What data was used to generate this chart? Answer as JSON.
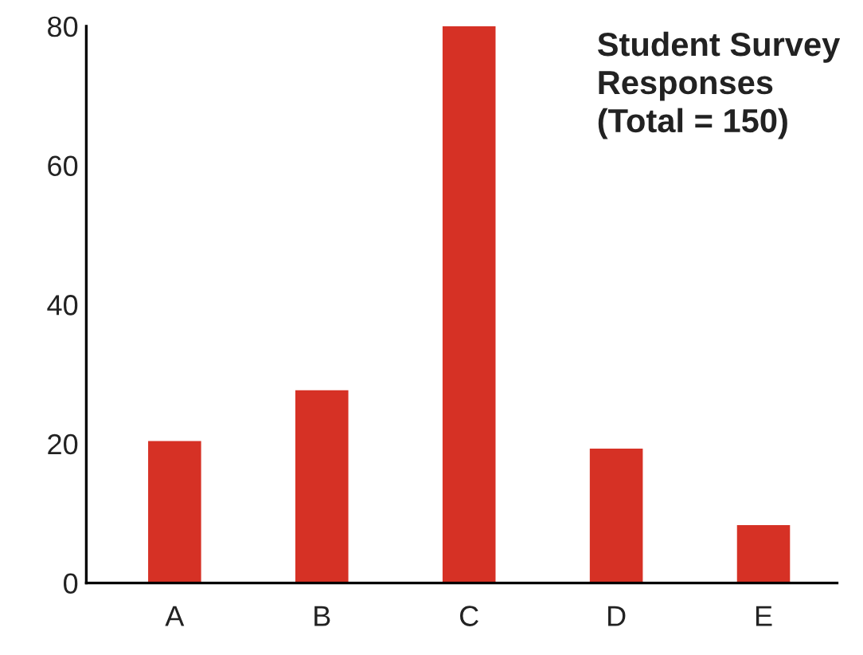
{
  "chart_data": {
    "type": "bar",
    "title": "Student Survey\nResponses\n(Total = 150)",
    "categories": [
      "A",
      "B",
      "C",
      "D",
      "E"
    ],
    "values": [
      20.4,
      27.7,
      80,
      19.3,
      8.3
    ],
    "color": "#d63125",
    "ylim": [
      0,
      80
    ],
    "yticks": [
      0,
      20,
      40,
      60,
      80
    ],
    "grid": false
  }
}
